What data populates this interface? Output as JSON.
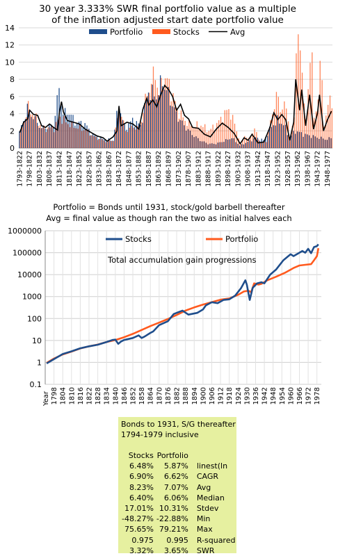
{
  "chart_data": [
    {
      "type": "bar",
      "title": "30 year 3.333% SWR final portfolio value as a multiple of the inflation adjusted start date portfolio value",
      "title_lines": [
        "30 year 3.333% SWR final portfolio value as a multiple",
        "of the inflation adjusted start date portfolio value"
      ],
      "legend_position": "top",
      "series": [
        {
          "name": "Portfolio",
          "kind": "bar",
          "color": "#1f4e8c"
        },
        {
          "name": "Stocks",
          "kind": "bar",
          "color": "#ff5a1e"
        },
        {
          "name": "Avg",
          "kind": "line",
          "color": "#000000"
        }
      ],
      "ylim": [
        0,
        14
      ],
      "y_ticks": [
        0,
        2,
        4,
        6,
        8,
        10,
        12,
        14
      ],
      "x_tick_labels": [
        "1793-1822",
        "1798-1827",
        "1803-1832",
        "1808-1837",
        "1813-1842",
        "1818-1847",
        "1823-1852",
        "1828-1857",
        "1833-1862",
        "1838-1867",
        "1843-1872",
        "1848-1877",
        "1853-1882",
        "1858-1887",
        "1863-1892",
        "1868-1897",
        "1873-1902",
        "1878-1907",
        "1883-1912",
        "1888-1917",
        "1893-1922",
        "1898-1927",
        "1903-1932",
        "1908-1937",
        "1913-1942",
        "1918-1947",
        "1923-1952",
        "1928-1957",
        "1933-1962",
        "1938-1967",
        "1943-1972",
        "1948-1977"
      ],
      "grid": true,
      "approx_profile_avg": [
        [
          1793,
          1.8
        ],
        [
          1795,
          3.0
        ],
        [
          1797,
          3.4
        ],
        [
          1798,
          4.4
        ],
        [
          1800,
          3.9
        ],
        [
          1802,
          3.8
        ],
        [
          1804,
          2.6
        ],
        [
          1806,
          2.4
        ],
        [
          1808,
          2.8
        ],
        [
          1810,
          2.4
        ],
        [
          1812,
          2.1
        ],
        [
          1813,
          4.2
        ],
        [
          1814,
          5.4
        ],
        [
          1815,
          4.2
        ],
        [
          1817,
          3.2
        ],
        [
          1820,
          3.0
        ],
        [
          1823,
          2.8
        ],
        [
          1826,
          2.2
        ],
        [
          1829,
          1.8
        ],
        [
          1832,
          1.4
        ],
        [
          1835,
          1.2
        ],
        [
          1837,
          0.8
        ],
        [
          1840,
          1.3
        ],
        [
          1842,
          2.0
        ],
        [
          1843,
          4.9
        ],
        [
          1844,
          2.6
        ],
        [
          1847,
          3.0
        ],
        [
          1850,
          2.8
        ],
        [
          1853,
          2.2
        ],
        [
          1855,
          4.5
        ],
        [
          1857,
          5.8
        ],
        [
          1858,
          5.0
        ],
        [
          1860,
          5.6
        ],
        [
          1862,
          4.8
        ],
        [
          1864,
          6.2
        ],
        [
          1866,
          7.3
        ],
        [
          1868,
          6.8
        ],
        [
          1870,
          6.0
        ],
        [
          1872,
          4.4
        ],
        [
          1874,
          5.1
        ],
        [
          1876,
          3.8
        ],
        [
          1878,
          3.4
        ],
        [
          1880,
          2.4
        ],
        [
          1883,
          2.3
        ],
        [
          1886,
          1.6
        ],
        [
          1889,
          1.3
        ],
        [
          1892,
          2.2
        ],
        [
          1895,
          2.9
        ],
        [
          1898,
          2.4
        ],
        [
          1901,
          1.7
        ],
        [
          1904,
          0.5
        ],
        [
          1906,
          1.2
        ],
        [
          1908,
          0.9
        ],
        [
          1910,
          1.6
        ],
        [
          1913,
          0.6
        ],
        [
          1916,
          0.7
        ],
        [
          1919,
          2.4
        ],
        [
          1921,
          4.1
        ],
        [
          1923,
          3.3
        ],
        [
          1925,
          3.9
        ],
        [
          1927,
          3.3
        ],
        [
          1929,
          0.9
        ],
        [
          1931,
          3.0
        ],
        [
          1932,
          8.0
        ],
        [
          1934,
          4.4
        ],
        [
          1935,
          6.8
        ],
        [
          1937,
          2.6
        ],
        [
          1939,
          6.2
        ],
        [
          1941,
          2.2
        ],
        [
          1943,
          4.1
        ],
        [
          1944,
          6.2
        ],
        [
          1946,
          2.0
        ],
        [
          1948,
          3.3
        ],
        [
          1950,
          4.3
        ]
      ],
      "approx_profile_portfolio": [
        [
          1793,
          1.8
        ],
        [
          1797,
          4.6
        ],
        [
          1800,
          3.6
        ],
        [
          1804,
          2.3
        ],
        [
          1810,
          2.6
        ],
        [
          1813,
          6.9
        ],
        [
          1815,
          4.0
        ],
        [
          1818,
          4.2
        ],
        [
          1821,
          3.0
        ],
        [
          1826,
          2.8
        ],
        [
          1830,
          1.5
        ],
        [
          1836,
          1.0
        ],
        [
          1840,
          0.9
        ],
        [
          1843,
          5.0
        ],
        [
          1846,
          2.4
        ],
        [
          1850,
          3.2
        ],
        [
          1854,
          2.6
        ],
        [
          1858,
          6.6
        ],
        [
          1862,
          6.0
        ],
        [
          1865,
          7.8
        ],
        [
          1868,
          6.2
        ],
        [
          1872,
          3.9
        ],
        [
          1876,
          2.6
        ],
        [
          1880,
          1.6
        ],
        [
          1884,
          0.9
        ],
        [
          1888,
          0.5
        ],
        [
          1892,
          0.5
        ],
        [
          1896,
          0.8
        ],
        [
          1900,
          1.2
        ],
        [
          1904,
          0.3
        ],
        [
          1908,
          0.7
        ],
        [
          1912,
          1.2
        ],
        [
          1916,
          0.9
        ],
        [
          1920,
          2.5
        ],
        [
          1923,
          3.2
        ],
        [
          1926,
          2.8
        ],
        [
          1929,
          1.2
        ],
        [
          1932,
          2.0
        ],
        [
          1936,
          1.6
        ],
        [
          1940,
          1.4
        ],
        [
          1944,
          1.2
        ],
        [
          1948,
          1.0
        ],
        [
          1950,
          1.2
        ]
      ],
      "approx_profile_stocks": [
        [
          1793,
          1.8
        ],
        [
          1797,
          4.6
        ],
        [
          1800,
          3.8
        ],
        [
          1804,
          2.3
        ],
        [
          1810,
          2.3
        ],
        [
          1813,
          3.6
        ],
        [
          1816,
          3.0
        ],
        [
          1820,
          2.5
        ],
        [
          1826,
          2.1
        ],
        [
          1830,
          1.3
        ],
        [
          1836,
          0.8
        ],
        [
          1840,
          0.9
        ],
        [
          1843,
          4.6
        ],
        [
          1846,
          2.0
        ],
        [
          1850,
          2.5
        ],
        [
          1853,
          2.2
        ],
        [
          1856,
          5.5
        ],
        [
          1858,
          7.0
        ],
        [
          1861,
          8.8
        ],
        [
          1863,
          6.0
        ],
        [
          1865,
          8.4
        ],
        [
          1868,
          7.4
        ],
        [
          1872,
          4.5
        ],
        [
          1876,
          3.2
        ],
        [
          1880,
          2.5
        ],
        [
          1884,
          2.7
        ],
        [
          1888,
          2.0
        ],
        [
          1892,
          2.8
        ],
        [
          1896,
          4.0
        ],
        [
          1898,
          4.5
        ],
        [
          1901,
          2.8
        ],
        [
          1904,
          0.5
        ],
        [
          1906,
          1.5
        ],
        [
          1908,
          1.0
        ],
        [
          1911,
          2.2
        ],
        [
          1914,
          0.6
        ],
        [
          1917,
          0.8
        ],
        [
          1920,
          4.0
        ],
        [
          1922,
          6.2
        ],
        [
          1924,
          4.6
        ],
        [
          1926,
          5.0
        ],
        [
          1928,
          3.6
        ],
        [
          1929,
          1.2
        ],
        [
          1931,
          3.5
        ],
        [
          1932,
          13.0
        ],
        [
          1933,
          12.3
        ],
        [
          1935,
          9.0
        ],
        [
          1937,
          3.0
        ],
        [
          1939,
          10.5
        ],
        [
          1940,
          12.3
        ],
        [
          1941,
          3.0
        ],
        [
          1943,
          6.0
        ],
        [
          1944,
          10.6
        ],
        [
          1946,
          2.8
        ],
        [
          1948,
          5.0
        ],
        [
          1950,
          5.6
        ]
      ]
    },
    {
      "type": "line",
      "title": "Total accumulation gain progressions",
      "caption_lines": [
        "Portfolio = Bonds until 1931, stock/gold barbell thereafter",
        "Avg = final value as though ran the two as initial halves each"
      ],
      "y_scale": "log",
      "ylim": [
        0.1,
        1000000
      ],
      "y_tick_labels": [
        "0.1",
        "1",
        "10",
        "100",
        "1000",
        "10000",
        "100000",
        "1000000"
      ],
      "x_label": "Year",
      "xlim": [
        1792,
        1981
      ],
      "x_tick_labels": [
        "1798",
        "1804",
        "1810",
        "1816",
        "1822",
        "1828",
        "1834",
        "1840",
        "1846",
        "1852",
        "1858",
        "1864",
        "1870",
        "1876",
        "1882",
        "1888",
        "1894",
        "1900",
        "1906",
        "1912",
        "1918",
        "1924",
        "1930",
        "1936",
        "1942",
        "1948",
        "1954",
        "1960",
        "1966",
        "1972",
        "1978"
      ],
      "legend_position": "top",
      "grid": true,
      "series": [
        {
          "name": "Stocks",
          "color": "#1f4e8c",
          "points": [
            [
              1793,
              0.9
            ],
            [
              1798,
              1.4
            ],
            [
              1804,
              2.4
            ],
            [
              1810,
              3.2
            ],
            [
              1816,
              4.4
            ],
            [
              1822,
              5.4
            ],
            [
              1828,
              6.4
            ],
            [
              1834,
              8.5
            ],
            [
              1838,
              10.5
            ],
            [
              1840,
              11
            ],
            [
              1842,
              7
            ],
            [
              1844,
              9
            ],
            [
              1846,
              10.5
            ],
            [
              1852,
              13
            ],
            [
              1856,
              17
            ],
            [
              1858,
              13
            ],
            [
              1860,
              15
            ],
            [
              1864,
              22
            ],
            [
              1866,
              26
            ],
            [
              1870,
              50
            ],
            [
              1876,
              75
            ],
            [
              1880,
              160
            ],
            [
              1886,
              230
            ],
            [
              1890,
              150
            ],
            [
              1896,
              180
            ],
            [
              1900,
              260
            ],
            [
              1902,
              400
            ],
            [
              1906,
              550
            ],
            [
              1910,
              500
            ],
            [
              1914,
              700
            ],
            [
              1918,
              750
            ],
            [
              1922,
              1100
            ],
            [
              1926,
              2400
            ],
            [
              1929,
              5500
            ],
            [
              1930,
              3500
            ],
            [
              1932,
              700
            ],
            [
              1934,
              2500
            ],
            [
              1937,
              4000
            ],
            [
              1940,
              4500
            ],
            [
              1942,
              4000
            ],
            [
              1946,
              10000
            ],
            [
              1950,
              17000
            ],
            [
              1955,
              45000
            ],
            [
              1960,
              85000
            ],
            [
              1962,
              70000
            ],
            [
              1966,
              100000
            ],
            [
              1968,
              120000
            ],
            [
              1970,
              100000
            ],
            [
              1972,
              150000
            ],
            [
              1974,
              95000
            ],
            [
              1976,
              180000
            ],
            [
              1978,
              200000
            ],
            [
              1979,
              240000
            ]
          ]
        },
        {
          "name": "Portfolio",
          "color": "#ff5a1e",
          "points": [
            [
              1793,
              0.95
            ],
            [
              1798,
              1.5
            ],
            [
              1804,
              2.3
            ],
            [
              1810,
              3.1
            ],
            [
              1816,
              4.3
            ],
            [
              1822,
              5.4
            ],
            [
              1828,
              6.5
            ],
            [
              1834,
              8.5
            ],
            [
              1840,
              10.5
            ],
            [
              1846,
              14
            ],
            [
              1852,
              20
            ],
            [
              1858,
              30
            ],
            [
              1864,
              45
            ],
            [
              1870,
              65
            ],
            [
              1876,
              95
            ],
            [
              1882,
              145
            ],
            [
              1888,
              230
            ],
            [
              1894,
              320
            ],
            [
              1900,
              430
            ],
            [
              1906,
              560
            ],
            [
              1912,
              720
            ],
            [
              1918,
              820
            ],
            [
              1924,
              1200
            ],
            [
              1928,
              1700
            ],
            [
              1931,
              1850
            ],
            [
              1933,
              1600
            ],
            [
              1935,
              4000
            ],
            [
              1938,
              3500
            ],
            [
              1940,
              3800
            ],
            [
              1944,
              5500
            ],
            [
              1950,
              8000
            ],
            [
              1956,
              12000
            ],
            [
              1962,
              20000
            ],
            [
              1966,
              26000
            ],
            [
              1970,
              28000
            ],
            [
              1974,
              30000
            ],
            [
              1976,
              45000
            ],
            [
              1978,
              70000
            ],
            [
              1979,
              160000
            ]
          ]
        }
      ]
    }
  ],
  "stats_table": {
    "heading_lines": [
      "Bonds to 1931, S/G thereafter",
      "1794-1979 inclusive"
    ],
    "col_headers": [
      "Stocks",
      "Portfolio"
    ],
    "rows": [
      {
        "stocks": "6.48%",
        "portfolio": "5.87%",
        "label": "linest(ln"
      },
      {
        "stocks": "6.90%",
        "portfolio": "6.62%",
        "label": "CAGR"
      },
      {
        "stocks": "8.23%",
        "portfolio": "7.07%",
        "label": "Avg"
      },
      {
        "stocks": "6.40%",
        "portfolio": "6.06%",
        "label": "Median"
      },
      {
        "stocks": "17.01%",
        "portfolio": "10.31%",
        "label": "Stdev"
      },
      {
        "stocks": "-48.27%",
        "portfolio": "-22.88%",
        "label": "Min"
      },
      {
        "stocks": "75.65%",
        "portfolio": "79.21%",
        "label": "Max"
      },
      {
        "stocks": "0.975",
        "portfolio": "0.995",
        "label": "R-squared"
      },
      {
        "stocks": "3.32%",
        "portfolio": "3.65%",
        "label": "SWR"
      }
    ]
  }
}
